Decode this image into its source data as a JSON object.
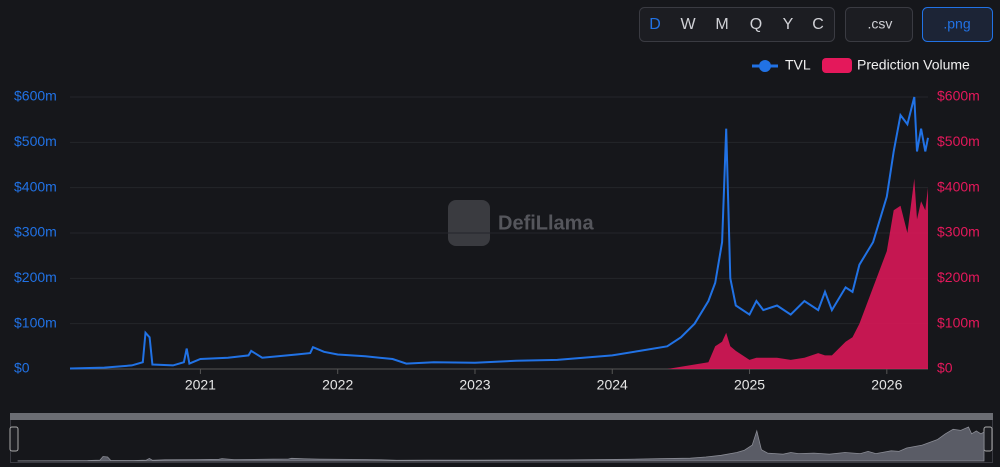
{
  "controls": {
    "intervals": [
      "D",
      "W",
      "M",
      "Q",
      "Y",
      "C"
    ],
    "downloads": [
      ".csv",
      ".png"
    ]
  },
  "watermark": "DefiLlama",
  "chart_data": {
    "type": "line",
    "x": [
      2020.05,
      2020.3,
      2020.5,
      2020.58,
      2020.6,
      2020.63,
      2020.65,
      2020.8,
      2020.88,
      2020.9,
      2020.92,
      2021.0,
      2021.2,
      2021.35,
      2021.37,
      2021.45,
      2021.7,
      2021.8,
      2021.82,
      2021.9,
      2022.0,
      2022.2,
      2022.4,
      2022.5,
      2022.7,
      2023.0,
      2023.3,
      2023.6,
      2024.0,
      2024.2,
      2024.4,
      2024.5,
      2024.6,
      2024.7,
      2024.75,
      2024.8,
      2024.83,
      2024.86,
      2024.9,
      2025.0,
      2025.05,
      2025.1,
      2025.2,
      2025.3,
      2025.4,
      2025.5,
      2025.55,
      2025.6,
      2025.7,
      2025.75,
      2025.8,
      2025.9,
      2026.0,
      2026.05,
      2026.1,
      2026.15,
      2026.2,
      2026.22,
      2026.25,
      2026.28,
      2026.3
    ],
    "series": [
      {
        "name": "TVL",
        "color": "#2172e5",
        "axis": "y",
        "values": [
          1,
          3,
          8,
          15,
          80,
          70,
          10,
          8,
          15,
          45,
          12,
          22,
          25,
          30,
          40,
          25,
          32,
          35,
          48,
          38,
          32,
          28,
          22,
          12,
          15,
          14,
          18,
          20,
          30,
          40,
          50,
          70,
          100,
          150,
          190,
          280,
          530,
          200,
          140,
          120,
          150,
          130,
          140,
          120,
          150,
          130,
          170,
          130,
          180,
          170,
          230,
          280,
          380,
          480,
          560,
          540,
          600,
          480,
          530,
          480,
          510
        ]
      },
      {
        "name": "Prediction Volume",
        "color": "#e4185b",
        "axis": "y2",
        "values": [
          0,
          0,
          0,
          0,
          0,
          0,
          0,
          0,
          0,
          0,
          0,
          0,
          0,
          0,
          0,
          0,
          0,
          0,
          0,
          0,
          0,
          0,
          0,
          0,
          0,
          0,
          0,
          0,
          0,
          0,
          0,
          5,
          10,
          15,
          50,
          60,
          80,
          50,
          40,
          20,
          25,
          25,
          25,
          20,
          25,
          35,
          30,
          30,
          60,
          70,
          100,
          180,
          260,
          350,
          360,
          300,
          420,
          330,
          370,
          350,
          400
        ]
      }
    ],
    "xlim": [
      2020.05,
      2026.3
    ],
    "xticks": [
      2021,
      2022,
      2023,
      2024,
      2025,
      2026
    ],
    "ylim": [
      0,
      600
    ],
    "yticks": [
      {
        "value": 0,
        "label": "$0"
      },
      {
        "value": 100,
        "label": "$100m"
      },
      {
        "value": 200,
        "label": "$200m"
      },
      {
        "value": 300,
        "label": "$300m"
      },
      {
        "value": 400,
        "label": "$400m"
      },
      {
        "value": 500,
        "label": "$500m"
      },
      {
        "value": 600,
        "label": "$600m"
      }
    ],
    "y2lim": [
      0,
      600
    ],
    "y2ticks": [
      {
        "value": 0,
        "label": "$0"
      },
      {
        "value": 100,
        "label": "$100m"
      },
      {
        "value": 200,
        "label": "$200m"
      },
      {
        "value": 300,
        "label": "$300m"
      },
      {
        "value": 400,
        "label": "$400m"
      },
      {
        "value": 500,
        "label": "$500m"
      },
      {
        "value": 600,
        "label": "$600m"
      }
    ],
    "grid": true
  }
}
